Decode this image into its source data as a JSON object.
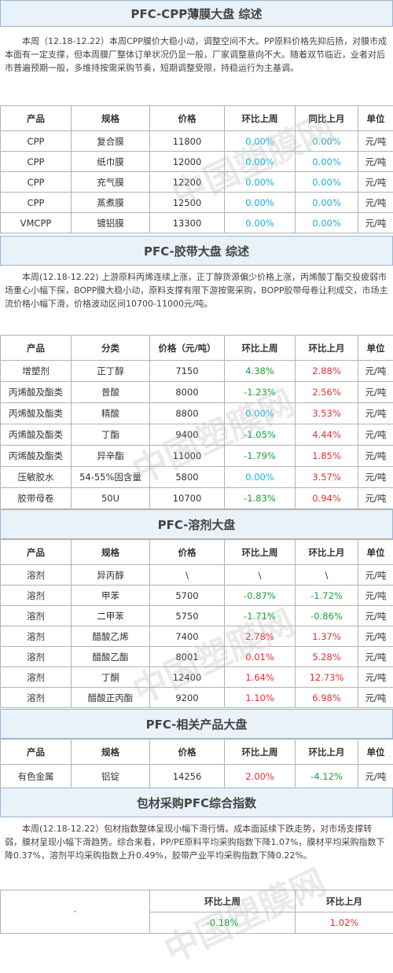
{
  "watermark": "中国塑膜网",
  "cpp": {
    "title": "PFC-CPP薄膜大盘 综述",
    "summary": "本周（12.18-12.22）本周CPP膜价大稳小动，调整空间不大。PP原料价格先抑后扬，对膜市成本面有一定支撑，但本周膜厂整体订单状况仍显一般，厂家调整意向不大。随着双节临近，业者对后市普遍预期一般，多维持按需采购节奏，短期调整受限，持稳运行为主基调。",
    "headers": [
      "产品",
      "规格",
      "价格",
      "环比上周",
      "同比上月",
      "单位"
    ],
    "rows": [
      [
        "CPP",
        "复合膜",
        "11800",
        "0.00%",
        "0.00%",
        "元/吨"
      ],
      [
        "CPP",
        "纸巾膜",
        "12000",
        "0.00%",
        "0.00%",
        "元/吨"
      ],
      [
        "CPP",
        "充气膜",
        "12200",
        "0.00%",
        "0.00%",
        "元/吨"
      ],
      [
        "CPP",
        "蒸煮膜",
        "12500",
        "0.00%",
        "0.00%",
        "元/吨"
      ],
      [
        "VMCPP",
        "镀铝膜",
        "13300",
        "0.00%",
        "0.00%",
        "元/吨"
      ]
    ],
    "tones": [
      [
        "zero",
        "zero"
      ],
      [
        "zero",
        "zero"
      ],
      [
        "zero",
        "zero"
      ],
      [
        "zero",
        "zero"
      ],
      [
        "zero",
        "zero"
      ]
    ]
  },
  "tape": {
    "title": "PFC-胶带大盘 综述",
    "summary": "本周(12.18-12.22) 上游原料丙烯连续上涨，正丁醇货源偏少价格上涨，丙烯酸丁酯交投疲弱市场重心小幅下探，BOPP膜大稳小动，原料支撑有限下游按需采购，BOPP胶带母卷让利成交，市场主流价格小幅下滑，价格波动区间10700-11000元/吨。",
    "headers": [
      "产品",
      "分类",
      "价格（元/吨）",
      "环比上周",
      "环比上月",
      "单位"
    ],
    "rows": [
      [
        "增塑剂",
        "正丁醇",
        "7150",
        "4.38%",
        "2.88%",
        "元/吨"
      ],
      [
        "丙烯酸及酯类",
        "普酸",
        "8000",
        "-1.23%",
        "2.56%",
        "元/吨"
      ],
      [
        "丙烯酸及酯类",
        "精酸",
        "8800",
        "0.00%",
        "3.53%",
        "元/吨"
      ],
      [
        "丙烯酸及酯类",
        "丁酯",
        "9400",
        "-1.05%",
        "4.44%",
        "元/吨"
      ],
      [
        "丙烯酸及酯类",
        "异辛酯",
        "11000",
        "-1.79%",
        "1.85%",
        "元/吨"
      ],
      [
        "压敏胶水",
        "54-55%固含量",
        "5800",
        "0.00%",
        "3.57%",
        "元/吨"
      ],
      [
        "胶带母卷",
        "50U",
        "10700",
        "-1.83%",
        "0.94%",
        "元/吨"
      ]
    ],
    "tones": [
      [
        "pos",
        "neg"
      ],
      [
        "pos",
        "neg"
      ],
      [
        "zero",
        "neg"
      ],
      [
        "pos",
        "neg"
      ],
      [
        "pos",
        "neg"
      ],
      [
        "zero",
        "neg"
      ],
      [
        "pos",
        "neg"
      ]
    ]
  },
  "solvent": {
    "title": "PFC-溶剂大盘",
    "headers": [
      "产品",
      "规格",
      "价格",
      "环比上周",
      "环比上月",
      "单位"
    ],
    "rows": [
      [
        "溶剂",
        "异丙醇",
        "\\",
        "\\",
        "\\",
        "元/吨"
      ],
      [
        "溶剂",
        "甲苯",
        "5700",
        "-0.87%",
        "-1.72%",
        "元/吨"
      ],
      [
        "溶剂",
        "二甲苯",
        "5750",
        "-1.71%",
        "-0.86%",
        "元/吨"
      ],
      [
        "溶剂",
        "醋酸乙烯",
        "7400",
        "2.78%",
        "1.37%",
        "元/吨"
      ],
      [
        "溶剂",
        "醋酸乙酯",
        "8001",
        "0.01%",
        "5.28%",
        "元/吨"
      ],
      [
        "溶剂",
        "丁酮",
        "12400",
        "1.64%",
        "12.73%",
        "元/吨"
      ],
      [
        "溶剂",
        "醋酸正丙酯",
        "9200",
        "1.10%",
        "6.98%",
        "元/吨"
      ]
    ],
    "tones": [
      [
        "dark",
        "dark"
      ],
      [
        "pos",
        "pos"
      ],
      [
        "pos",
        "pos"
      ],
      [
        "neg",
        "neg"
      ],
      [
        "neg",
        "neg"
      ],
      [
        "neg",
        "neg"
      ],
      [
        "neg",
        "neg"
      ]
    ]
  },
  "related": {
    "title": "PFC-相关产品大盘",
    "headers": [
      "产品",
      "规格",
      "价格",
      "环比上周",
      "环比上月",
      "单位"
    ],
    "rows": [
      [
        "有色金属",
        "铝锭",
        "14256",
        "2.00%",
        "-4.12%",
        "元/吨"
      ]
    ],
    "tones": [
      [
        "neg",
        "pos"
      ]
    ]
  },
  "index": {
    "title": "包材采购PFC综合指数",
    "summary": "本周(12.18-12.22）包材指数整体呈现小幅下滑行情。成本面延续下跌走势，对市场支撑转弱，膜材呈现小幅下滑趋势。综合来看，PP/PE原料平均采购指数下降1.07%，膜材平均采购指数下降0.37%，溶剂平均采购指数上升0.49%，胶带产业平均采购指数下降0.22%。",
    "dot": "·",
    "headers": [
      "环比上周",
      "环比上月"
    ],
    "values": [
      "-0.18%",
      "1.02%"
    ]
  }
}
